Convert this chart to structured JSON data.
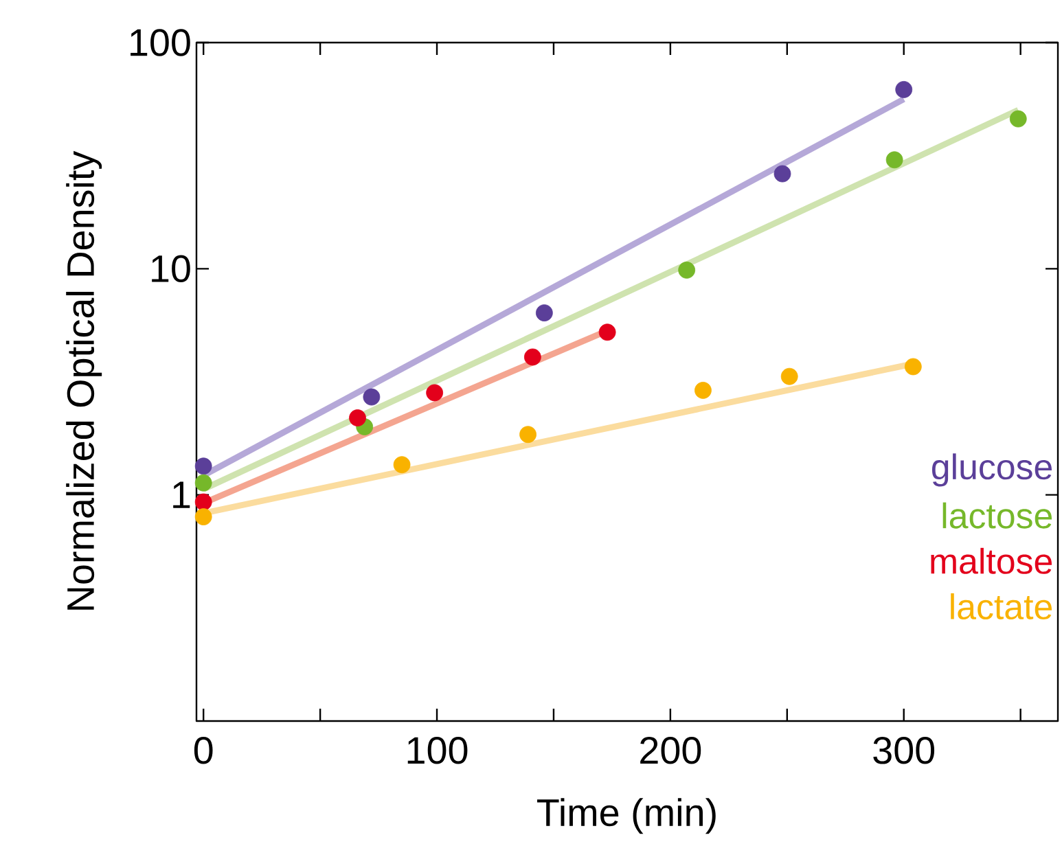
{
  "chart_data": {
    "type": "scatter",
    "xlabel": "Time (min)",
    "ylabel": "Normalized Optical Density",
    "log": "y",
    "xlim": [
      -3,
      366
    ],
    "ylim": [
      0.1,
      100
    ],
    "xticks": [
      0,
      {
        "value": 50,
        "label": null
      },
      100,
      {
        "value": 150,
        "label": null
      },
      200,
      {
        "value": 250,
        "label": null
      },
      300,
      {
        "value": 350,
        "label": null
      }
    ],
    "yticks": [
      1,
      10,
      100
    ],
    "grid": false,
    "legend": "bottom right",
    "series": [
      {
        "type": "line",
        "marker": "none",
        "color": "#b5a8d8",
        "x": [
          0,
          300
        ],
        "values": [
          1.22,
          56.2
        ]
      },
      {
        "type": "line",
        "marker": "none",
        "color": "#cfe3af",
        "x": [
          0,
          349
        ],
        "values": [
          1.06,
          50.3
        ]
      },
      {
        "type": "line",
        "marker": "none",
        "color": "#f4a590",
        "x": [
          0,
          173
        ],
        "values": [
          0.92,
          5.32
        ]
      },
      {
        "type": "line",
        "marker": "none",
        "color": "#fbdc9e",
        "x": [
          0,
          304
        ],
        "values": [
          0.83,
          3.8
        ]
      },
      {
        "name": "glucose",
        "marker": "circle",
        "color": "#5b3f99",
        "x": [
          0,
          72,
          146,
          248,
          300
        ],
        "values": [
          1.34,
          2.71,
          6.38,
          26.3,
          62
        ]
      },
      {
        "name": "lactose",
        "marker": "circle",
        "color": "#76b82a",
        "x": [
          0,
          69,
          207,
          296,
          349
        ],
        "values": [
          1.13,
          2.0,
          9.86,
          30.3,
          46
        ]
      },
      {
        "name": "maltose",
        "marker": "circle",
        "color": "#e3001b",
        "x": [
          0,
          66,
          99,
          141,
          173
        ],
        "values": [
          0.93,
          2.19,
          2.83,
          4.07,
          5.24
        ]
      },
      {
        "name": "lactate",
        "marker": "circle",
        "color": "#f9b200",
        "x": [
          0,
          85,
          139,
          214,
          251,
          304
        ],
        "values": [
          0.8,
          1.36,
          1.85,
          2.9,
          3.34,
          3.69
        ]
      }
    ]
  }
}
